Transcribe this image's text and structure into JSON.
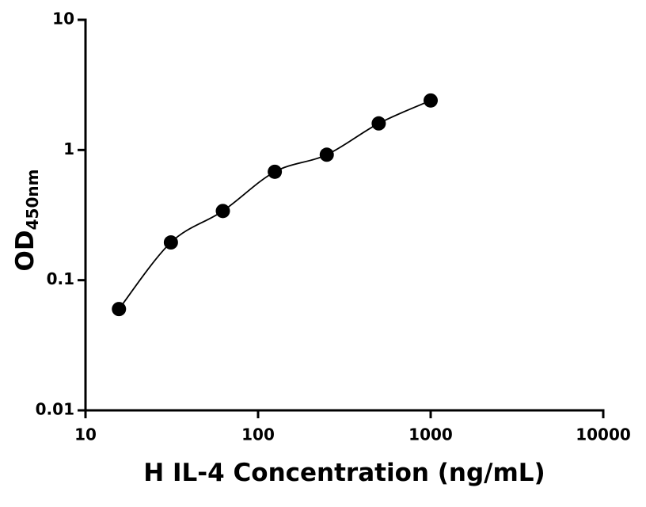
{
  "chart_data": {
    "type": "scatter",
    "x": [
      15.625,
      31.25,
      62.5,
      125,
      250,
      500,
      1000
    ],
    "series": [
      {
        "color": "#000000",
        "values": [
          0.06,
          0.195,
          0.34,
          0.68,
          0.92,
          1.6,
          2.4
        ]
      }
    ],
    "xlabel": "H IL-4 Concentration (ng/mL)",
    "ylabel": {
      "main": "OD",
      "sub": "450nm"
    },
    "xlim": [
      10,
      10000
    ],
    "ylim": [
      0.01,
      10
    ],
    "xticks": [
      10,
      100,
      1000,
      10000
    ],
    "yticks": [
      0.01,
      0.1,
      1,
      10
    ],
    "xscale": "log",
    "yscale": "log",
    "fit_line": true
  }
}
